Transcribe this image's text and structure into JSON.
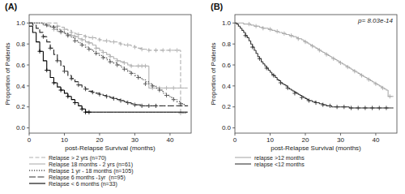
{
  "chart_data": [
    {
      "type": "step",
      "title": "(A)",
      "x_label": "post-Relapse Survival (months)",
      "y_label": "Proportion of Patients",
      "xlim": [
        0,
        46
      ],
      "ylim": [
        -0.05,
        1.08
      ],
      "xticks": [
        0,
        10,
        20,
        30,
        40
      ],
      "yticks": [
        {
          "value": 0.0,
          "label": "0.0"
        },
        0.2,
        0.4,
        0.6,
        0.8,
        {
          "value": 1.0,
          "label": "1.0"
        }
      ],
      "grid": false,
      "legend": "bottom",
      "x": [
        0,
        1,
        2,
        3,
        4,
        5,
        6,
        7,
        8,
        9,
        10,
        11,
        12,
        13,
        14,
        15,
        16,
        17,
        18,
        19,
        20,
        21,
        22,
        23,
        24,
        25,
        26,
        27,
        28,
        29,
        30,
        31,
        32,
        33,
        34,
        35,
        36,
        37,
        38,
        39,
        40,
        41,
        42,
        43,
        44,
        45
      ],
      "series": [
        {
          "name": "Relapse > 2 yrs (n=70)",
          "color": "#b0b0b0",
          "line_style": "dashed",
          "values": [
            1.0,
            1.0,
            1.0,
            1.0,
            1.0,
            1.0,
            1.0,
            1.0,
            0.97,
            0.96,
            0.94,
            0.93,
            0.91,
            0.9,
            0.89,
            0.88,
            0.87,
            0.86,
            0.86,
            0.85,
            0.84,
            0.83,
            0.83,
            0.82,
            0.82,
            0.81,
            0.8,
            0.79,
            0.79,
            0.78,
            0.77,
            0.76,
            0.75,
            0.75,
            0.74,
            0.74,
            0.74,
            0.74,
            0.74,
            0.74,
            0.74,
            0.74,
            0.74,
            0.14,
            0.14,
            0.14
          ],
          "censors_x": [
            8,
            10,
            12,
            14,
            16,
            18,
            20,
            22,
            24,
            26,
            28,
            30,
            32,
            34,
            36,
            38,
            40,
            42,
            43
          ],
          "censors_y": [
            0.97,
            0.94,
            0.91,
            0.89,
            0.87,
            0.86,
            0.84,
            0.83,
            0.82,
            0.8,
            0.79,
            0.77,
            0.75,
            0.74,
            0.74,
            0.74,
            0.74,
            0.74,
            0.14
          ]
        },
        {
          "name": "Relapse 18 months - 2 yrs (n=61)",
          "color": "#b0b0b0",
          "line_style": "solid",
          "values": [
            1.0,
            1.0,
            1.0,
            1.0,
            0.98,
            0.97,
            0.96,
            0.94,
            0.92,
            0.91,
            0.9,
            0.89,
            0.88,
            0.87,
            0.85,
            0.84,
            0.82,
            0.81,
            0.79,
            0.76,
            0.74,
            0.72,
            0.7,
            0.68,
            0.66,
            0.64,
            0.63,
            0.62,
            0.6,
            0.59,
            0.59,
            0.59,
            0.59,
            0.59,
            0.38,
            0.38,
            0.38,
            0.38,
            0.38,
            0.38,
            0.38,
            0.38,
            0.38,
            0.38,
            0.38,
            0.38
          ],
          "censors_x": [
            7,
            9,
            11,
            13,
            15,
            17,
            19,
            21,
            23,
            25,
            27,
            29,
            31,
            32,
            33,
            35,
            37,
            39,
            41
          ],
          "censors_y": [
            0.94,
            0.91,
            0.89,
            0.87,
            0.84,
            0.81,
            0.76,
            0.72,
            0.68,
            0.64,
            0.62,
            0.59,
            0.59,
            0.59,
            0.59,
            0.38,
            0.38,
            0.38,
            0.38
          ]
        },
        {
          "name": "Relapse 1 yr - 18 months (n=105)",
          "color": "#555555",
          "line_style": "dotted",
          "values": [
            1.0,
            1.0,
            1.0,
            1.0,
            0.99,
            0.98,
            0.97,
            0.96,
            0.94,
            0.92,
            0.9,
            0.88,
            0.86,
            0.83,
            0.81,
            0.79,
            0.77,
            0.75,
            0.73,
            0.71,
            0.69,
            0.67,
            0.65,
            0.63,
            0.62,
            0.6,
            0.58,
            0.56,
            0.54,
            0.52,
            0.5,
            0.48,
            0.46,
            0.44,
            0.42,
            0.4,
            0.38,
            0.36,
            0.33,
            0.31,
            0.29,
            0.27,
            0.25,
            0.23,
            0.21,
            0.2
          ],
          "censors_x": [
            5,
            7,
            9,
            11,
            13,
            15,
            17,
            19,
            21,
            23,
            25,
            27,
            29,
            31,
            33,
            35,
            37,
            39,
            41,
            43
          ],
          "censors_y": [
            0.98,
            0.96,
            0.92,
            0.88,
            0.83,
            0.79,
            0.75,
            0.71,
            0.67,
            0.63,
            0.6,
            0.56,
            0.52,
            0.48,
            0.42,
            0.4,
            0.36,
            0.31,
            0.27,
            0.23
          ]
        },
        {
          "name": "Relapse 6 months -1yr  (n=95)",
          "color": "#333333",
          "line_style": "longdash",
          "values": [
            1.0,
            0.98,
            0.95,
            0.91,
            0.87,
            0.82,
            0.76,
            0.7,
            0.64,
            0.59,
            0.54,
            0.5,
            0.47,
            0.44,
            0.41,
            0.39,
            0.37,
            0.35,
            0.34,
            0.33,
            0.32,
            0.31,
            0.3,
            0.29,
            0.28,
            0.27,
            0.26,
            0.25,
            0.24,
            0.23,
            0.22,
            0.22,
            0.21,
            0.21,
            0.21,
            0.21,
            0.21,
            0.21,
            0.21,
            0.21,
            0.21,
            0.21,
            0.21,
            0.21,
            0.21,
            0.21
          ],
          "censors_x": [
            4,
            6,
            8,
            10,
            12,
            14,
            16,
            18,
            20,
            22,
            24,
            26,
            28,
            30,
            32,
            34,
            36
          ],
          "censors_y": [
            0.87,
            0.76,
            0.64,
            0.54,
            0.47,
            0.41,
            0.37,
            0.34,
            0.32,
            0.3,
            0.28,
            0.26,
            0.24,
            0.22,
            0.21,
            0.21,
            0.21
          ]
        },
        {
          "name": "Relapse < 6 months (n=33)",
          "color": "#000000",
          "line_style": "solid",
          "values": [
            0.97,
            0.91,
            0.82,
            0.73,
            0.64,
            0.55,
            0.48,
            0.43,
            0.39,
            0.36,
            0.33,
            0.3,
            0.27,
            0.24,
            0.21,
            0.18,
            0.15,
            0.15,
            0.15,
            0.15,
            0.15,
            0.15,
            0.15,
            0.15,
            0.15,
            0.15,
            0.15,
            0.15,
            0.15,
            0.15,
            0.15,
            0.15,
            0.15,
            0.15,
            0.15,
            0.15,
            0.15,
            0.15,
            0.15,
            0.15,
            0.15,
            0.15,
            0.15,
            0.15,
            0.15,
            0.15
          ],
          "censors_x": [
            3,
            5,
            7,
            9,
            11,
            13,
            15,
            16,
            17
          ],
          "censors_y": [
            0.73,
            0.55,
            0.43,
            0.36,
            0.3,
            0.24,
            0.18,
            0.15,
            0.15
          ]
        }
      ]
    },
    {
      "type": "step",
      "title": "(B)",
      "x_label": "post-Relapse Survival (months)",
      "y_label": "Proportion of Patients",
      "annotations": [
        "p= 8.03e-14"
      ],
      "xlim": [
        0,
        46
      ],
      "ylim": [
        -0.05,
        1.08
      ],
      "xticks": [
        0,
        10,
        20,
        30,
        40
      ],
      "yticks": [
        {
          "value": 0.0,
          "label": "0.0"
        },
        0.2,
        0.4,
        0.6,
        0.8,
        {
          "value": 1.0,
          "label": "1.0"
        }
      ],
      "grid": false,
      "legend": "bottom",
      "x": [
        0,
        0.5,
        1,
        1.5,
        2,
        2.5,
        3,
        3.5,
        4,
        4.5,
        5,
        5.5,
        6,
        6.5,
        7,
        7.5,
        8,
        8.5,
        9,
        9.5,
        10,
        10.5,
        11,
        11.5,
        12,
        12.5,
        13,
        13.5,
        14,
        14.5,
        15,
        15.5,
        16,
        16.5,
        17,
        17.5,
        18,
        18.5,
        19,
        19.5,
        20,
        20.5,
        21,
        21.5,
        22,
        22.5,
        23,
        23.5,
        24,
        24.5,
        25,
        25.5,
        26,
        26.5,
        27,
        27.5,
        28,
        28.5,
        29,
        29.5,
        30,
        30.5,
        31,
        31.5,
        32,
        32.5,
        33,
        33.5,
        34,
        34.5,
        35,
        35.5,
        36,
        36.5,
        37,
        37.5,
        38,
        38.5,
        39,
        39.5,
        40,
        40.5,
        41,
        41.5,
        42,
        42.5,
        43,
        43.5,
        44,
        44.5,
        45
      ],
      "series": [
        {
          "name": "relapse >12 months",
          "color": "#aaaaaa",
          "line_style": "solid",
          "values": [
            1.0,
            1.0,
            1.0,
            1.0,
            1.0,
            0.99,
            0.99,
            0.99,
            0.99,
            0.98,
            0.98,
            0.97,
            0.97,
            0.97,
            0.96,
            0.96,
            0.95,
            0.95,
            0.95,
            0.94,
            0.94,
            0.93,
            0.93,
            0.92,
            0.92,
            0.91,
            0.91,
            0.9,
            0.9,
            0.89,
            0.89,
            0.88,
            0.88,
            0.87,
            0.87,
            0.86,
            0.85,
            0.85,
            0.84,
            0.83,
            0.82,
            0.81,
            0.8,
            0.79,
            0.78,
            0.77,
            0.76,
            0.75,
            0.74,
            0.73,
            0.72,
            0.71,
            0.7,
            0.69,
            0.68,
            0.67,
            0.66,
            0.65,
            0.64,
            0.63,
            0.62,
            0.61,
            0.6,
            0.59,
            0.58,
            0.57,
            0.56,
            0.55,
            0.54,
            0.53,
            0.52,
            0.51,
            0.5,
            0.49,
            0.48,
            0.47,
            0.46,
            0.45,
            0.44,
            0.43,
            0.42,
            0.41,
            0.4,
            0.39,
            0.38,
            0.37,
            0.36,
            0.3,
            0.3,
            0.3,
            0.3
          ],
          "censors_x": [
            4,
            6,
            8,
            10,
            12,
            14,
            16,
            18,
            20,
            22,
            24,
            26,
            28,
            30,
            32,
            34,
            36,
            38,
            40,
            42,
            44
          ],
          "censors_y": [
            0.99,
            0.97,
            0.95,
            0.94,
            0.92,
            0.9,
            0.88,
            0.85,
            0.82,
            0.78,
            0.74,
            0.7,
            0.66,
            0.62,
            0.58,
            0.54,
            0.5,
            0.46,
            0.42,
            0.38,
            0.3
          ]
        },
        {
          "name": "relapse <12 months",
          "color": "#333333",
          "line_style": "solid",
          "values": [
            1.0,
            0.99,
            0.97,
            0.95,
            0.93,
            0.91,
            0.88,
            0.86,
            0.83,
            0.8,
            0.77,
            0.74,
            0.71,
            0.68,
            0.66,
            0.63,
            0.61,
            0.59,
            0.57,
            0.55,
            0.53,
            0.51,
            0.5,
            0.48,
            0.46,
            0.45,
            0.43,
            0.42,
            0.41,
            0.4,
            0.38,
            0.37,
            0.36,
            0.35,
            0.34,
            0.33,
            0.32,
            0.31,
            0.3,
            0.29,
            0.28,
            0.27,
            0.26,
            0.26,
            0.25,
            0.25,
            0.24,
            0.24,
            0.23,
            0.23,
            0.22,
            0.22,
            0.21,
            0.21,
            0.21,
            0.2,
            0.2,
            0.2,
            0.2,
            0.2,
            0.2,
            0.2,
            0.2,
            0.2,
            0.2,
            0.19,
            0.19,
            0.19,
            0.19,
            0.19,
            0.19,
            0.19,
            0.19,
            0.19,
            0.19,
            0.19,
            0.19,
            0.19,
            0.19,
            0.19,
            0.19,
            0.19,
            0.19,
            0.19,
            0.19,
            0.19,
            0.19,
            0.19,
            0.19,
            0.19,
            0.19
          ],
          "censors_x": [
            3,
            5,
            7,
            9,
            11,
            13,
            15,
            17,
            19,
            21,
            23,
            25,
            27,
            29,
            31,
            33,
            35,
            37,
            39,
            41,
            43
          ],
          "censors_y": [
            0.88,
            0.77,
            0.66,
            0.57,
            0.5,
            0.43,
            0.38,
            0.33,
            0.29,
            0.26,
            0.24,
            0.22,
            0.21,
            0.2,
            0.2,
            0.19,
            0.19,
            0.19,
            0.19,
            0.19,
            0.19
          ]
        }
      ]
    }
  ]
}
